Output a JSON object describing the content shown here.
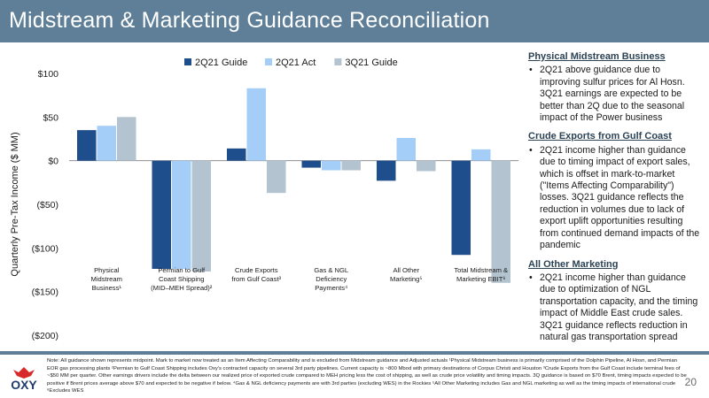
{
  "header": {
    "title": "Midstream & Marketing Guidance Reconciliation"
  },
  "chart_data": {
    "type": "bar",
    "ylabel": "Quarterly Pre-Tax Income ($ MM)",
    "ylim": [
      -200,
      100
    ],
    "yticks": [
      100,
      50,
      0,
      -50,
      -100,
      -150,
      -200
    ],
    "yticklabels": [
      "$100",
      "$50",
      "$0",
      "($50)",
      "($100)",
      "($150)",
      "($200)"
    ],
    "grid": false,
    "legend_position": "top",
    "categories": [
      [
        "Physical",
        "Midstream",
        "Business¹"
      ],
      [
        "Permian to Gulf",
        "Coast Shipping",
        "(MID–MEH Spread)²"
      ],
      [
        "Crude Exports",
        "from Gulf Coast³"
      ],
      [
        "Gas & NGL",
        "Deficiency",
        "Payments⁴"
      ],
      [
        "All Other",
        "Marketing⁵"
      ],
      [
        "Total Midstream &",
        "Marketing EBIT⁶"
      ]
    ],
    "series": [
      {
        "name": "2Q21 Guide",
        "color": "#1f4e8c",
        "values": [
          35,
          -124,
          14,
          -8,
          -23,
          -108
        ]
      },
      {
        "name": "2Q21 Act",
        "color": "#a4cdf7",
        "values": [
          40,
          -124,
          83,
          -11,
          26,
          13
        ]
      },
      {
        "name": "3Q21 Guide",
        "color": "#b3c3cf",
        "values": [
          50,
          -127,
          -37,
          -11,
          -12,
          -140
        ]
      }
    ]
  },
  "panel": {
    "sections": [
      {
        "title": "Physical Midstream Business",
        "bullet": "2Q21 above guidance due to improving sulfur prices for Al Hosn. 3Q21 earnings are expected to be better than 2Q due to the seasonal impact of the Power business"
      },
      {
        "title": "Crude Exports from Gulf Coast",
        "bullet": "2Q21 income higher than guidance due to timing impact of export sales, which is offset in mark-to-market (\"Items Affecting Comparability\") losses. 3Q21 guidance reflects the reduction in volumes due to lack of export uplift opportunities resulting from continued demand impacts of the pandemic"
      },
      {
        "title": "All Other Marketing",
        "bullet": "2Q21 income higher than guidance due to optimization of NGL transportation capacity, and the timing impact of Middle East crude sales. 3Q21 guidance reflects reduction in natural gas transportation spread"
      }
    ]
  },
  "footer": {
    "logo_text": "OXY",
    "note": "Note: All guidance shown represents midpoint. Mark to market now treated as an Item Affecting Comparability and is excluded from Midstream guidance and Adjusted actuals    ¹Physical Midstream business is primarily comprised of the Dolphin Pipeline, Al Hosn, and Permian EOR gas processing plants    ²Permian to Gulf Coast Shipping includes Oxy's contracted capacity on several 3rd party pipelines. Current capacity is ~800 Mbod with primary destinations of Corpus Christi and Houston    ³Crude Exports from the Gulf Coast include terminal fees of ~$50 MM per quarter. Other earnings drivers include the delta between our realized price of exported crude compared to MEH pricing less the cost of shipping, as well as crude price volatility and timing impacts. 3Q guidance is based on $70 Brent, timing impacts expected to be positive if Brent prices average above $70 and expected to be negative if below.    ⁴Gas & NGL deficiency payments are with 3rd parties (excluding WES) in the Rockies    ⁵All Other Marketing includes Gas and NGL marketing as well as the timing impacts of international crude    ⁶Excludes WES",
    "page_number": "20"
  }
}
